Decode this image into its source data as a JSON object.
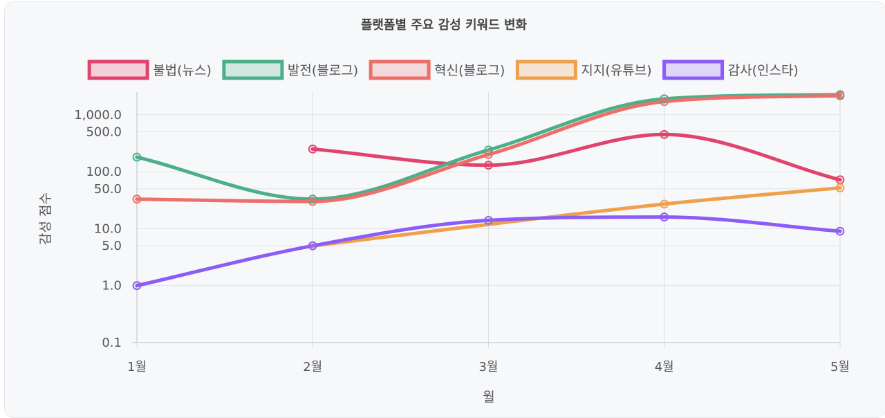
{
  "chart_data": {
    "type": "line",
    "title": "플랫폼별 주요 감성 키워드 변화",
    "xlabel": "월",
    "ylabel": "감성 점수",
    "scale": "log",
    "ylim": [
      0.1,
      2500
    ],
    "categories": [
      "1월",
      "2월",
      "3월",
      "4월",
      "5월"
    ],
    "y_ticks": [
      "1,000.0",
      "500.0",
      "100.0",
      "50.0",
      "10.0",
      "5.0",
      "1.0",
      "0.1"
    ],
    "legend_position": "top",
    "grid": true,
    "series": [
      {
        "name": "불법(뉴스)",
        "color": "#e0436b",
        "values": [
          null,
          250,
          130,
          450,
          72
        ]
      },
      {
        "name": "발전(블로그)",
        "color": "#4caf8a",
        "values": [
          180,
          33,
          240,
          1900,
          2250
        ]
      },
      {
        "name": "혁신(블로그)",
        "color": "#ec6f6a",
        "values": [
          33,
          30,
          200,
          1700,
          2150
        ]
      },
      {
        "name": "지지(유튜브)",
        "color": "#f0a04b",
        "values": [
          null,
          5,
          null,
          27,
          52
        ]
      },
      {
        "name": "감사(인스타)",
        "color": "#8b5cf6",
        "values": [
          1,
          5,
          14,
          16,
          9
        ]
      }
    ]
  }
}
